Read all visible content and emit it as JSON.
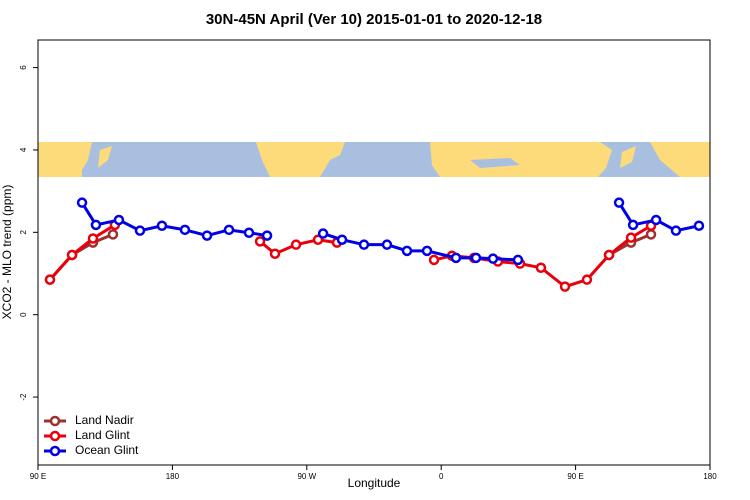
{
  "chart_data": {
    "type": "line",
    "title": "30N-45N April (Ver 10)   2015-01-01 to 2020-12-18",
    "x_label": "Longitude",
    "y_label": "XCO2 - MLO trend (ppm)",
    "xlim": [
      90,
      540
    ],
    "ylim": [
      -3.65,
      6.67
    ],
    "xticks": [
      {
        "value": 90,
        "label": "90 E"
      },
      {
        "value": 180,
        "label": "180"
      },
      {
        "value": 270,
        "label": "90 W"
      },
      {
        "value": 360,
        "label": "0"
      },
      {
        "value": 450,
        "label": "90 E"
      },
      {
        "value": 540,
        "label": "180"
      }
    ],
    "yticks": [
      -2,
      0,
      2,
      4,
      6
    ],
    "legend": "bottom-left",
    "series": [
      {
        "name": "Land Nadir",
        "color": "#a0302f",
        "x": [
          98,
          112.8,
          126.8,
          140.2,
          null,
          472.4,
          487.1,
          500.5
        ],
        "values": [
          0.85,
          1.45,
          1.75,
          1.95,
          null,
          1.45,
          1.75,
          1.95
        ]
      },
      {
        "name": "Land Glint",
        "color": "#e8000b",
        "x": [
          98,
          112.8,
          126.8,
          141.5,
          null,
          238.7,
          248.7,
          262.8,
          277.5,
          290.2,
          null,
          355.2,
          367.2,
          382,
          398,
          412.8,
          426.8,
          442.9,
          457.6,
          472.4,
          487.1,
          500.5
        ],
        "values": [
          0.85,
          1.45,
          1.85,
          2.18,
          null,
          1.78,
          1.48,
          1.7,
          1.82,
          1.75,
          null,
          1.33,
          1.43,
          1.38,
          1.29,
          1.24,
          1.14,
          0.68,
          0.85,
          1.45,
          1.87,
          2.16
        ]
      },
      {
        "name": "Ocean Glint",
        "color": "#0000e6",
        "x": [
          119.5,
          128.8,
          144.2,
          158.3,
          173,
          188.4,
          203.2,
          217.9,
          231.3,
          243.4,
          null,
          280.9,
          293.6,
          308.3,
          323.7,
          337.1,
          350.5,
          369.9,
          383.3,
          394.7,
          411.4,
          null,
          479.1,
          488.5,
          503.9,
          517.2,
          532.6
        ],
        "values": [
          2.72,
          2.18,
          2.3,
          2.04,
          2.16,
          2.06,
          1.92,
          2.06,
          1.99,
          1.92,
          null,
          1.97,
          1.82,
          1.7,
          1.7,
          1.55,
          1.55,
          1.38,
          1.38,
          1.36,
          1.33,
          null,
          2.72,
          2.18,
          2.3,
          2.04,
          2.16
        ]
      }
    ]
  }
}
